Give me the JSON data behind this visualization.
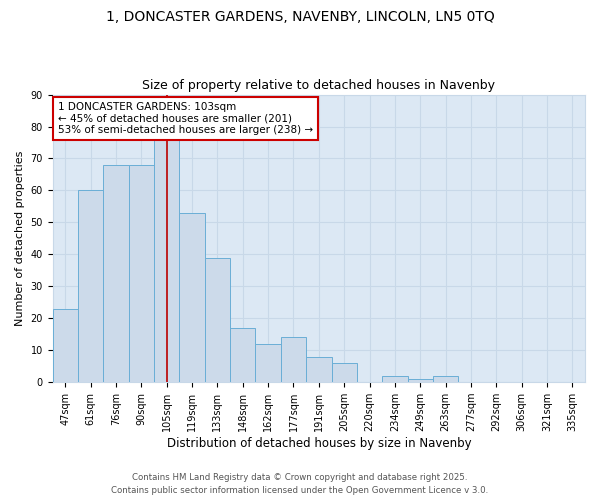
{
  "title1": "1, DONCASTER GARDENS, NAVENBY, LINCOLN, LN5 0TQ",
  "title2": "Size of property relative to detached houses in Navenby",
  "xlabel": "Distribution of detached houses by size in Navenby",
  "ylabel": "Number of detached properties",
  "categories": [
    "47sqm",
    "61sqm",
    "76sqm",
    "90sqm",
    "105sqm",
    "119sqm",
    "133sqm",
    "148sqm",
    "162sqm",
    "177sqm",
    "191sqm",
    "205sqm",
    "220sqm",
    "234sqm",
    "249sqm",
    "263sqm",
    "277sqm",
    "292sqm",
    "306sqm",
    "321sqm",
    "335sqm"
  ],
  "values": [
    23,
    60,
    68,
    68,
    76,
    53,
    39,
    17,
    12,
    14,
    8,
    6,
    0,
    2,
    1,
    2,
    0,
    0,
    0,
    0,
    0
  ],
  "bar_color": "#ccdaea",
  "bar_edge_color": "#6aaed6",
  "grid_color": "#c8d8e8",
  "bg_color": "#dce8f4",
  "red_line_index": 4,
  "annotation_title": "1 DONCASTER GARDENS: 103sqm",
  "annotation_line1": "← 45% of detached houses are smaller (201)",
  "annotation_line2": "53% of semi-detached houses are larger (238) →",
  "annotation_box_color": "#cc0000",
  "ylim": [
    0,
    90
  ],
  "yticks": [
    0,
    10,
    20,
    30,
    40,
    50,
    60,
    70,
    80,
    90
  ],
  "footer1": "Contains HM Land Registry data © Crown copyright and database right 2025.",
  "footer2": "Contains public sector information licensed under the Open Government Licence v 3.0.",
  "title_fontsize": 10,
  "subtitle_fontsize": 9,
  "axis_fontsize": 8.5,
  "tick_fontsize": 7,
  "annotation_fontsize": 7.5,
  "ylabel_fontsize": 8
}
